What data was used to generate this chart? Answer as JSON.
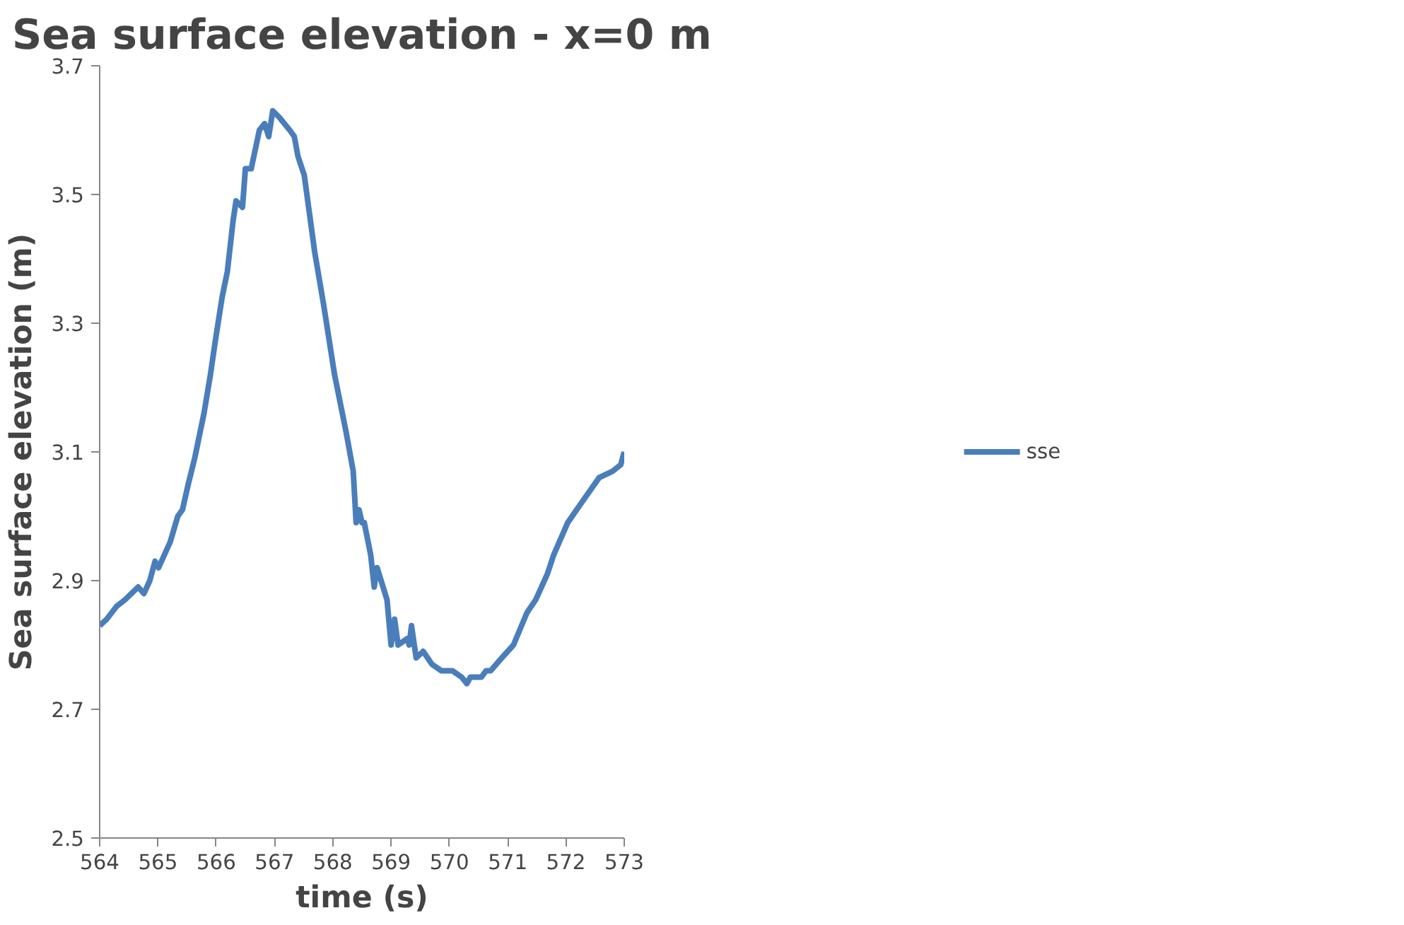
{
  "chart_data": {
    "type": "line",
    "title": "Sea surface elevation - x=0 m",
    "xlabel": "time (s)",
    "ylabel": "Sea surface elevation (m)",
    "xlim": [
      564,
      573
    ],
    "xticks": [
      564,
      565,
      566,
      567,
      568,
      569,
      570,
      571,
      572,
      573
    ],
    "ylim": [
      2.5,
      3.7
    ],
    "yticks": [
      2.5,
      2.7,
      2.9,
      3.1,
      3.3,
      3.5,
      3.7
    ],
    "grid": false,
    "legend": "right",
    "line_style": "solid",
    "marker": "none",
    "series": [
      {
        "name": "sse",
        "color": "#4a7ebb",
        "x": [
          564.0,
          564.12,
          564.29,
          564.43,
          564.66,
          564.76,
          564.86,
          564.95,
          565.01,
          565.21,
          565.34,
          565.42,
          565.52,
          565.63,
          565.79,
          565.9,
          565.98,
          566.1,
          566.19,
          566.29,
          566.34,
          566.45,
          566.5,
          566.6,
          566.74,
          566.83,
          566.9,
          566.97,
          567.08,
          567.26,
          567.34,
          567.4,
          567.51,
          567.69,
          567.84,
          568.03,
          568.23,
          568.35,
          568.4,
          568.45,
          568.5,
          568.54,
          568.65,
          568.71,
          568.76,
          568.93,
          569.0,
          569.06,
          569.12,
          569.28,
          569.31,
          569.35,
          569.43,
          569.55,
          569.7,
          569.86,
          570.05,
          570.21,
          570.3,
          570.36,
          570.55,
          570.63,
          570.71,
          570.9,
          571.1,
          571.33,
          571.48,
          571.68,
          571.79,
          572.03,
          572.26,
          572.57,
          572.8,
          572.94,
          573.0
        ],
        "values": [
          2.83,
          2.84,
          2.86,
          2.87,
          2.89,
          2.88,
          2.9,
          2.93,
          2.92,
          2.96,
          3.0,
          3.01,
          3.05,
          3.09,
          3.16,
          3.22,
          3.27,
          3.34,
          3.38,
          3.46,
          3.49,
          3.48,
          3.54,
          3.54,
          3.6,
          3.61,
          3.59,
          3.63,
          3.62,
          3.6,
          3.59,
          3.56,
          3.53,
          3.41,
          3.33,
          3.22,
          3.13,
          3.07,
          2.99,
          3.01,
          2.99,
          2.99,
          2.94,
          2.89,
          2.92,
          2.87,
          2.8,
          2.84,
          2.8,
          2.81,
          2.8,
          2.83,
          2.78,
          2.79,
          2.77,
          2.76,
          2.76,
          2.75,
          2.74,
          2.75,
          2.75,
          2.76,
          2.76,
          2.78,
          2.8,
          2.85,
          2.87,
          2.91,
          2.94,
          2.99,
          3.02,
          3.06,
          3.07,
          3.08,
          3.1
        ]
      }
    ]
  }
}
